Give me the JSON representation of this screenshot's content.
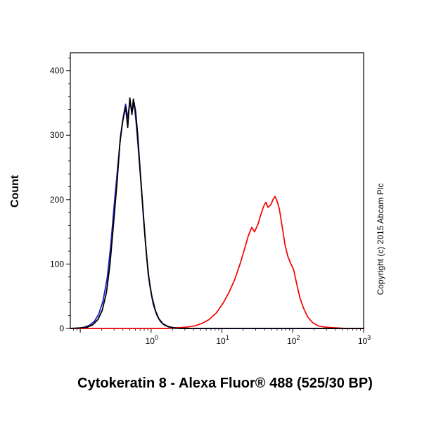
{
  "copyright": "Copyright (c) 2015 Abcam Plc",
  "chart_data": {
    "type": "line",
    "title": "Cytokeratin 8 - Alexa Fluor® 488 (525/30 BP)",
    "ylabel": "Count",
    "xlabel": "",
    "x_scale": "log10",
    "x_tick_base": "10",
    "x_tick_exponents": [
      0,
      1,
      2,
      3
    ],
    "x_unlabeled_decades": [
      -1
    ],
    "xlim_log10": [
      -1.14,
      3
    ],
    "y_ticks": [
      0,
      100,
      200,
      300,
      400
    ],
    "y_minor_step": 20,
    "ylim": [
      0,
      428
    ],
    "grid": false,
    "legend": "none",
    "frame_color": "#000000",
    "series": [
      {
        "name": "blue-curve",
        "color": "#2121c8",
        "stroke_width": 1.8,
        "points": [
          [
            -1.14,
            0
          ],
          [
            -1.02,
            0
          ],
          [
            -0.94,
            2
          ],
          [
            -0.87,
            5
          ],
          [
            -0.8,
            11
          ],
          [
            -0.74,
            22
          ],
          [
            -0.68,
            42
          ],
          [
            -0.62,
            78
          ],
          [
            -0.57,
            128
          ],
          [
            -0.52,
            192
          ],
          [
            -0.47,
            252
          ],
          [
            -0.43,
            300
          ],
          [
            -0.39,
            330
          ],
          [
            -0.36,
            348
          ],
          [
            -0.33,
            326
          ],
          [
            -0.3,
            352
          ],
          [
            -0.27,
            336
          ],
          [
            -0.24,
            350
          ],
          [
            -0.21,
            318
          ],
          [
            -0.18,
            278
          ],
          [
            -0.14,
            222
          ],
          [
            -0.1,
            160
          ],
          [
            -0.06,
            108
          ],
          [
            -0.02,
            68
          ],
          [
            0.03,
            38
          ],
          [
            0.08,
            21
          ],
          [
            0.13,
            11
          ],
          [
            0.19,
            5
          ],
          [
            0.26,
            2
          ],
          [
            0.35,
            1
          ],
          [
            0.45,
            0
          ],
          [
            3,
            0
          ]
        ]
      },
      {
        "name": "red-curve",
        "color": "#f40000",
        "stroke_width": 1.7,
        "points": [
          [
            -1.14,
            0
          ],
          [
            0.2,
            0
          ],
          [
            0.35,
            1
          ],
          [
            0.5,
            2
          ],
          [
            0.62,
            4
          ],
          [
            0.72,
            8
          ],
          [
            0.82,
            14
          ],
          [
            0.92,
            24
          ],
          [
            1.02,
            40
          ],
          [
            1.1,
            56
          ],
          [
            1.18,
            76
          ],
          [
            1.25,
            98
          ],
          [
            1.31,
            120
          ],
          [
            1.37,
            143
          ],
          [
            1.42,
            157
          ],
          [
            1.46,
            150
          ],
          [
            1.51,
            162
          ],
          [
            1.55,
            177
          ],
          [
            1.59,
            190
          ],
          [
            1.62,
            196
          ],
          [
            1.65,
            188
          ],
          [
            1.69,
            192
          ],
          [
            1.72,
            200
          ],
          [
            1.75,
            205
          ],
          [
            1.78,
            197
          ],
          [
            1.81,
            186
          ],
          [
            1.85,
            158
          ],
          [
            1.89,
            130
          ],
          [
            1.93,
            112
          ],
          [
            1.97,
            101
          ],
          [
            2.01,
            92
          ],
          [
            2.05,
            72
          ],
          [
            2.1,
            48
          ],
          [
            2.15,
            32
          ],
          [
            2.21,
            18
          ],
          [
            2.28,
            9
          ],
          [
            2.36,
            4
          ],
          [
            2.46,
            2
          ],
          [
            2.6,
            1
          ],
          [
            2.75,
            0
          ],
          [
            3,
            0
          ]
        ]
      },
      {
        "name": "black-curve",
        "color": "#000000",
        "stroke_width": 1.8,
        "points": [
          [
            -1.14,
            0
          ],
          [
            -1.0,
            1
          ],
          [
            -0.9,
            2
          ],
          [
            -0.82,
            6
          ],
          [
            -0.75,
            14
          ],
          [
            -0.69,
            28
          ],
          [
            -0.63,
            56
          ],
          [
            -0.58,
            100
          ],
          [
            -0.53,
            162
          ],
          [
            -0.48,
            228
          ],
          [
            -0.44,
            288
          ],
          [
            -0.4,
            322
          ],
          [
            -0.36,
            344
          ],
          [
            -0.33,
            312
          ],
          [
            -0.3,
            358
          ],
          [
            -0.27,
            332
          ],
          [
            -0.25,
            356
          ],
          [
            -0.22,
            338
          ],
          [
            -0.19,
            302
          ],
          [
            -0.16,
            254
          ],
          [
            -0.12,
            194
          ],
          [
            -0.08,
            134
          ],
          [
            -0.04,
            84
          ],
          [
            0.01,
            50
          ],
          [
            0.06,
            28
          ],
          [
            0.11,
            15
          ],
          [
            0.17,
            7
          ],
          [
            0.24,
            3
          ],
          [
            0.32,
            1
          ],
          [
            0.4,
            0
          ],
          [
            3,
            0
          ]
        ]
      }
    ]
  }
}
